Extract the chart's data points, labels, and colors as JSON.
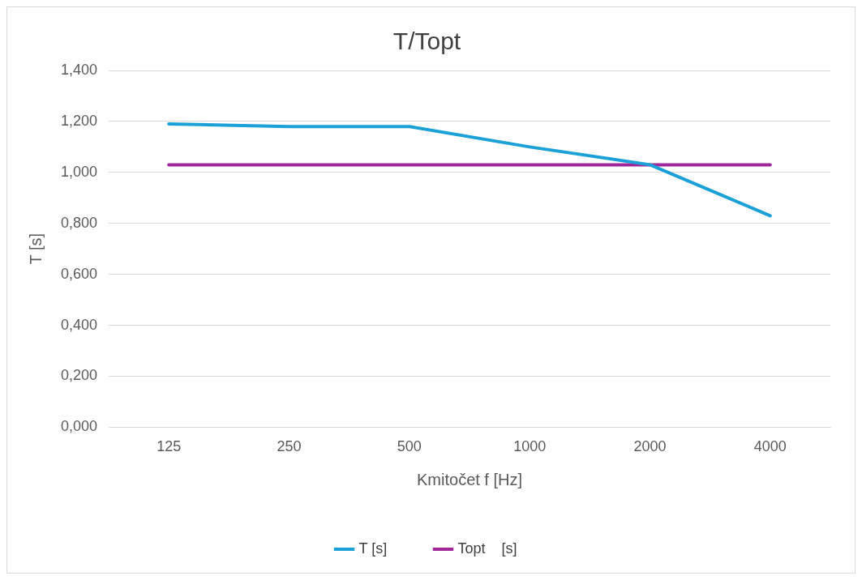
{
  "chart_data": {
    "type": "line",
    "title": "T/Topt",
    "xlabel": "Kmitočet f [Hz]",
    "ylabel": "T [s]",
    "categories": [
      "125",
      "250",
      "500",
      "1000",
      "2000",
      "4000"
    ],
    "series": [
      {
        "name": "T [s]",
        "color": "#1ba1d8",
        "values": [
          1.19,
          1.18,
          1.18,
          1.1,
          1.03,
          0.83
        ]
      },
      {
        "name": "Topt    [s]",
        "color": "#a0279a",
        "values": [
          1.03,
          1.03,
          1.03,
          1.03,
          1.03,
          1.03
        ]
      }
    ],
    "ylim": [
      0,
      1.4
    ],
    "yticks": [
      {
        "value": 0,
        "label": "0,000"
      },
      {
        "value": 0.2,
        "label": "0,200"
      },
      {
        "value": 0.4,
        "label": "0,400"
      },
      {
        "value": 0.6,
        "label": "0,600"
      },
      {
        "value": 0.8,
        "label": "0,800"
      },
      {
        "value": 1.0,
        "label": "1,000"
      },
      {
        "value": 1.2,
        "label": "1,200"
      },
      {
        "value": 1.4,
        "label": "1,400"
      }
    ],
    "grid": "y",
    "legend": "bottom",
    "marker": "none",
    "line_style": "solid"
  }
}
